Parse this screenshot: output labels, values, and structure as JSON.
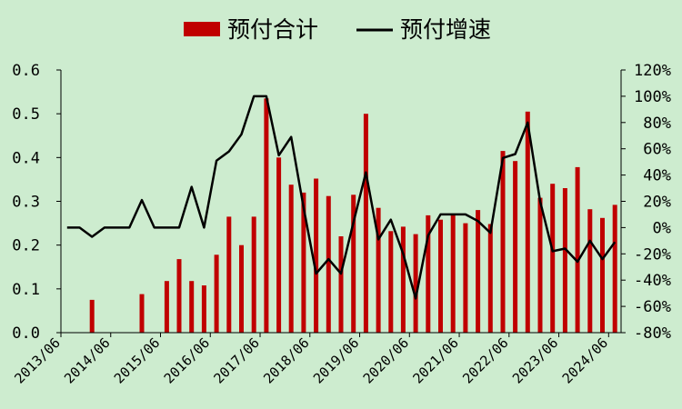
{
  "chart_data": {
    "type": "bar",
    "legend": {
      "placement": "top"
    },
    "series": [
      {
        "name": "预付合计",
        "type": "bar",
        "axis": "left",
        "color": "#c00000",
        "values": [
          0,
          0,
          0.075,
          0,
          0,
          0,
          0.088,
          0,
          0.118,
          0.168,
          0.118,
          0.108,
          0.178,
          0.265,
          0.2,
          0.265,
          0.535,
          0.4,
          0.338,
          0.32,
          0.352,
          0.312,
          0.22,
          0.315,
          0.5,
          0.285,
          0.232,
          0.242,
          0.225,
          0.268,
          0.258,
          0.268,
          0.25,
          0.28,
          0.248,
          0.415,
          0.392,
          0.505,
          0.308,
          0.34,
          0.33,
          0.378,
          0.282,
          0.262,
          0.292
        ]
      },
      {
        "name": "预付增速",
        "type": "line",
        "axis": "right",
        "color": "#000000",
        "values": [
          0,
          0,
          -7,
          0,
          0,
          0,
          21,
          0,
          0,
          0,
          31,
          0,
          51,
          58,
          71,
          100,
          100,
          55,
          69,
          15,
          -35,
          -24,
          -35,
          4,
          42,
          -9,
          6,
          -20,
          -54,
          -6,
          10,
          10,
          10,
          5,
          -4,
          53,
          56,
          80,
          20,
          -18,
          -16,
          -26,
          -10,
          -24,
          -11
        ]
      }
    ],
    "x_tick_labels": [
      "2013/06",
      "2014/06",
      "2015/06",
      "2016/06",
      "2017/06",
      "2018/06",
      "2019/06",
      "2020/06",
      "2021/06",
      "2022/06",
      "2023/06",
      "2024/06"
    ],
    "y_left": {
      "min": 0,
      "max": 0.6,
      "step": 0.1,
      "tick_labels": [
        "0.0",
        "0.1",
        "0.2",
        "0.3",
        "0.4",
        "0.5",
        "0.6"
      ]
    },
    "y_right": {
      "min": -80,
      "max": 120,
      "step": 20,
      "tick_labels": [
        "-80%",
        "-60%",
        "-40%",
        "-20%",
        "0%",
        "20%",
        "40%",
        "60%",
        "80%",
        "100%",
        "120%"
      ]
    },
    "grid": false
  },
  "colors": {
    "background": "#cdeccf",
    "bar": "#c00000",
    "line": "#000000"
  }
}
